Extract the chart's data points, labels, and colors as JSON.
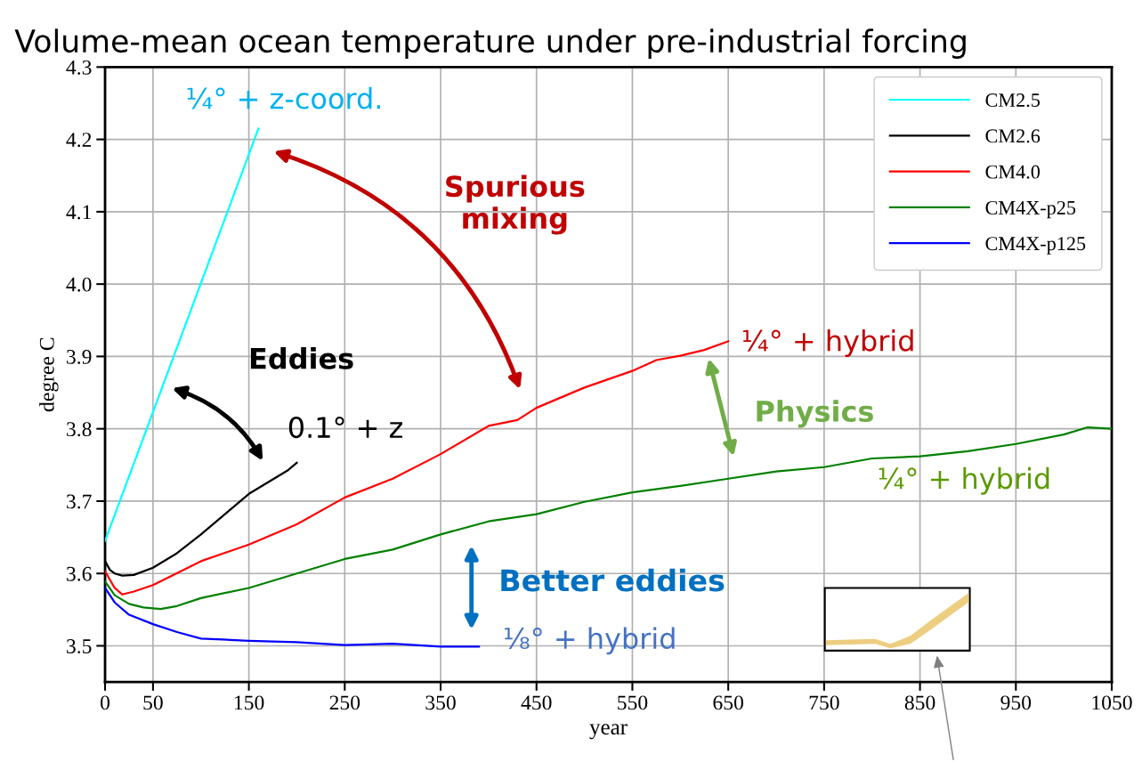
{
  "chart_data": {
    "type": "line",
    "title": "Volume-mean ocean temperature under pre-industrial forcing",
    "xlabel": "year",
    "ylabel": "degree C",
    "xlim": [
      0,
      1050
    ],
    "ylim": [
      3.45,
      4.3
    ],
    "xticks": [
      0,
      50,
      150,
      250,
      350,
      450,
      550,
      650,
      750,
      850,
      950,
      1050
    ],
    "yticks": [
      {
        "value": 3.5,
        "label": "3.5"
      },
      {
        "value": 3.6,
        "label": "3.6"
      },
      {
        "value": 3.7,
        "label": "3.7"
      },
      {
        "value": 3.8,
        "label": "3.8"
      },
      {
        "value": 3.9,
        "label": "3.9"
      },
      {
        "value": 4.0,
        "label": "4.0"
      },
      {
        "value": 4.1,
        "label": "4.1"
      },
      {
        "value": 4.2,
        "label": "4.2"
      },
      {
        "value": 4.3,
        "label": "4.3"
      }
    ],
    "grid": true,
    "legend": "top right",
    "marker": "none",
    "line_style": "solid",
    "series": [
      {
        "name": "CM2.5",
        "color": "#00ffff",
        "x": [
          0,
          160
        ],
        "values": [
          3.645,
          4.215
        ]
      },
      {
        "name": "CM2.6",
        "color": "#000000",
        "x": [
          0,
          5,
          10,
          18,
          30,
          50,
          75,
          100,
          125,
          150,
          175,
          190,
          200
        ],
        "values": [
          3.617,
          3.605,
          3.6,
          3.597,
          3.598,
          3.608,
          3.628,
          3.654,
          3.682,
          3.71,
          3.73,
          3.742,
          3.753
        ]
      },
      {
        "name": "CM4.0",
        "color": "#ff0000",
        "x": [
          0,
          10,
          18,
          30,
          50,
          100,
          150,
          200,
          250,
          300,
          350,
          400,
          430,
          450,
          500,
          550,
          575,
          600,
          625,
          650
        ],
        "values": [
          3.603,
          3.58,
          3.571,
          3.575,
          3.584,
          3.617,
          3.64,
          3.668,
          3.705,
          3.731,
          3.765,
          3.804,
          3.812,
          3.829,
          3.857,
          3.88,
          3.895,
          3.901,
          3.909,
          3.921
        ]
      },
      {
        "name": "CM4X-p25",
        "color": "#008000",
        "x": [
          0,
          10,
          25,
          40,
          58,
          75,
          100,
          150,
          200,
          250,
          300,
          350,
          400,
          450,
          500,
          550,
          600,
          650,
          700,
          750,
          800,
          850,
          900,
          950,
          1000,
          1025,
          1050
        ],
        "values": [
          3.589,
          3.57,
          3.558,
          3.553,
          3.551,
          3.555,
          3.566,
          3.58,
          3.6,
          3.62,
          3.633,
          3.654,
          3.672,
          3.682,
          3.699,
          3.712,
          3.721,
          3.731,
          3.741,
          3.747,
          3.759,
          3.762,
          3.769,
          3.779,
          3.792,
          3.802,
          3.8
        ]
      },
      {
        "name": "CM4X-p125",
        "color": "#0000ff",
        "x": [
          0,
          10,
          25,
          50,
          75,
          100,
          150,
          200,
          250,
          300,
          350,
          390
        ],
        "values": [
          3.58,
          3.56,
          3.543,
          3.53,
          3.519,
          3.51,
          3.507,
          3.505,
          3.501,
          3.503,
          3.499,
          3.499
        ]
      }
    ],
    "annotations": [
      "¼° + z-coord.",
      "Spurious\nmixing",
      "Eddies",
      "0.1° + z",
      "¼° + hybrid",
      "Physics",
      "¼° + hybrid",
      "Better eddies",
      "⅛° + hybrid"
    ]
  }
}
